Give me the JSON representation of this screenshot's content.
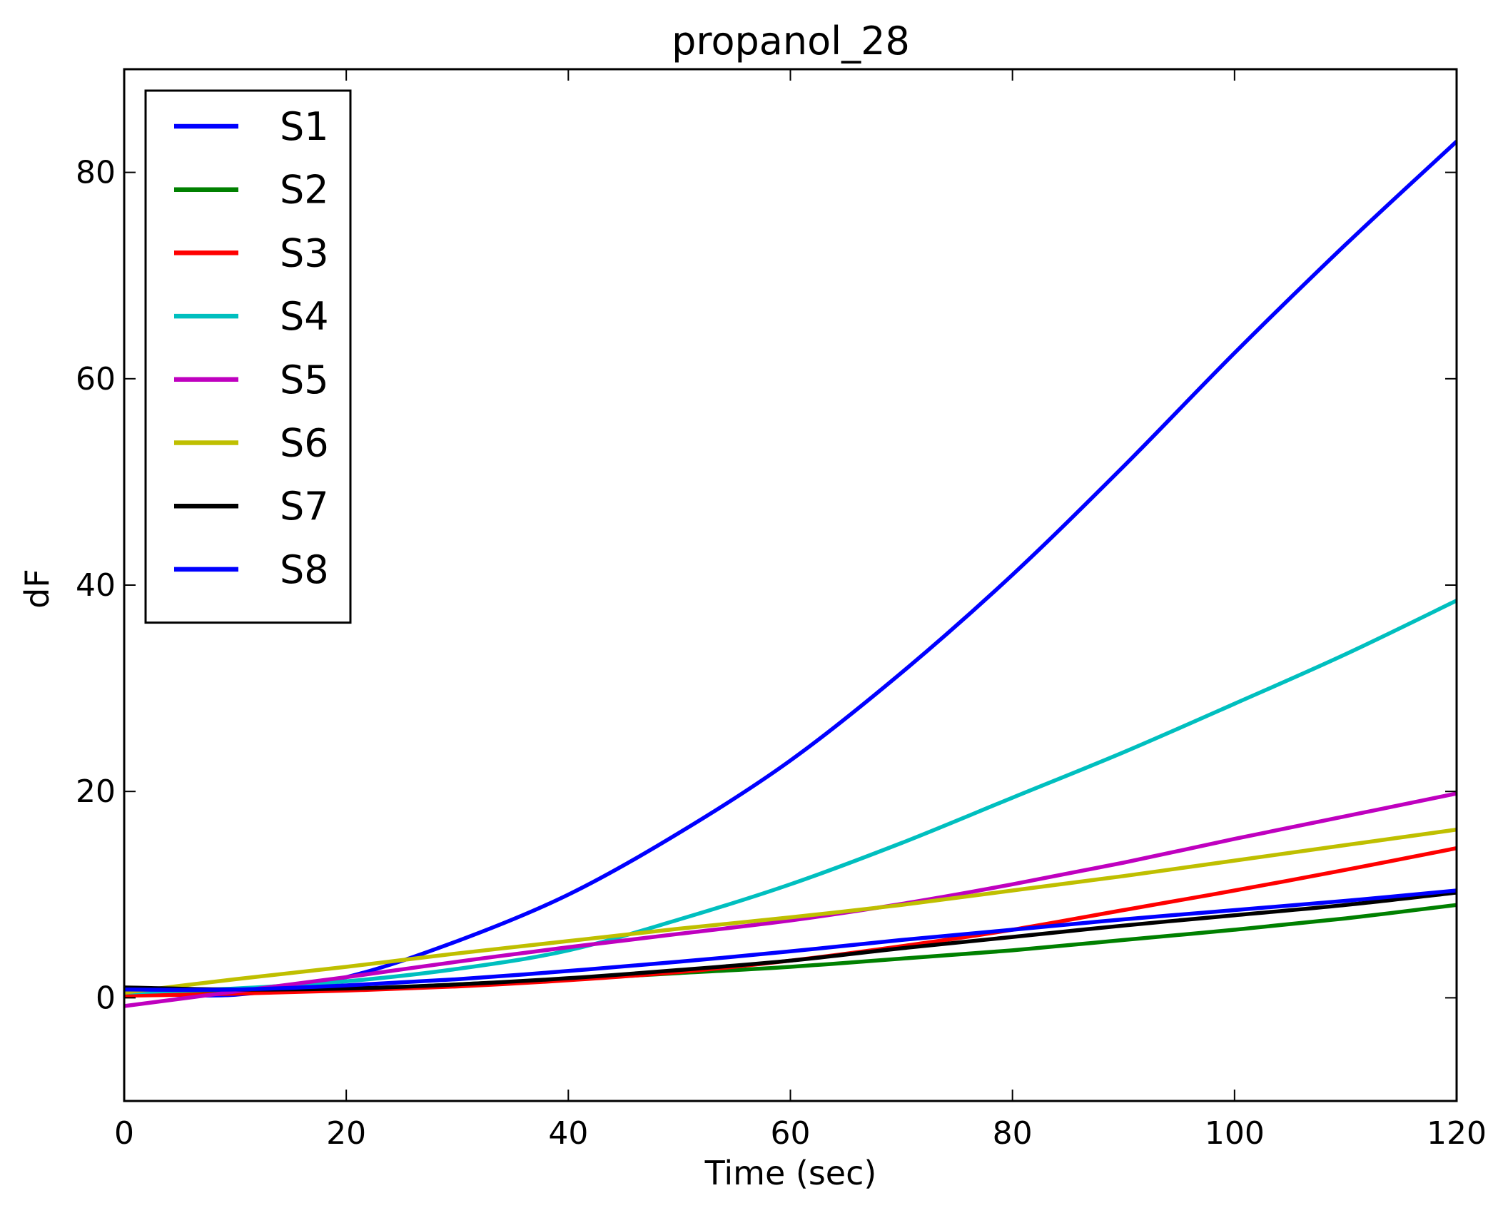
{
  "chart_data": {
    "type": "line",
    "title": "propanol_28",
    "xlabel": "Time (sec)",
    "ylabel": "dF",
    "xlim": [
      0,
      120
    ],
    "ylim": [
      -10,
      90
    ],
    "x_ticks": [
      "0",
      "20",
      "40",
      "60",
      "80",
      "100",
      "120"
    ],
    "y_ticks": [
      "0",
      "20",
      "40",
      "60",
      "80"
    ],
    "grid": false,
    "legend_position": "top-left",
    "x": [
      0,
      10,
      20,
      30,
      40,
      50,
      60,
      70,
      80,
      90,
      100,
      110,
      120
    ],
    "series": [
      {
        "name": "S1",
        "color": "#0000ff",
        "values": [
          0.5,
          0.3,
          2.0,
          5.5,
          10.0,
          16.0,
          23.0,
          31.5,
          41.0,
          51.5,
          62.5,
          73.0,
          83.0
        ]
      },
      {
        "name": "S2",
        "color": "#008000",
        "values": [
          0.3,
          0.5,
          0.8,
          1.3,
          1.8,
          2.4,
          3.0,
          3.8,
          4.6,
          5.6,
          6.6,
          7.7,
          9.0
        ]
      },
      {
        "name": "S3",
        "color": "#ff0000",
        "values": [
          0.2,
          0.4,
          0.7,
          1.1,
          1.7,
          2.5,
          3.6,
          5.0,
          6.6,
          8.5,
          10.4,
          12.4,
          14.5
        ]
      },
      {
        "name": "S4",
        "color": "#00bfbf",
        "values": [
          0.5,
          0.9,
          1.6,
          2.8,
          4.6,
          7.6,
          11.0,
          15.0,
          19.4,
          23.8,
          28.5,
          33.3,
          38.5
        ]
      },
      {
        "name": "S5",
        "color": "#bf00bf",
        "values": [
          -0.8,
          0.6,
          2.0,
          3.5,
          4.9,
          6.2,
          7.5,
          9.1,
          11.0,
          13.1,
          15.4,
          17.6,
          19.8
        ]
      },
      {
        "name": "S6",
        "color": "#bfbf00",
        "values": [
          0.5,
          1.8,
          3.0,
          4.3,
          5.5,
          6.7,
          7.8,
          9.0,
          10.4,
          11.8,
          13.3,
          14.8,
          16.3
        ]
      },
      {
        "name": "S7",
        "color": "#000000",
        "values": [
          1.0,
          0.8,
          0.9,
          1.3,
          1.9,
          2.7,
          3.6,
          4.8,
          5.9,
          7.0,
          8.0,
          9.0,
          10.2
        ]
      },
      {
        "name": "S8",
        "color": "#0000ff",
        "values": [
          0.8,
          0.8,
          1.2,
          1.8,
          2.6,
          3.5,
          4.5,
          5.6,
          6.6,
          7.6,
          8.5,
          9.4,
          10.4
        ]
      }
    ]
  }
}
